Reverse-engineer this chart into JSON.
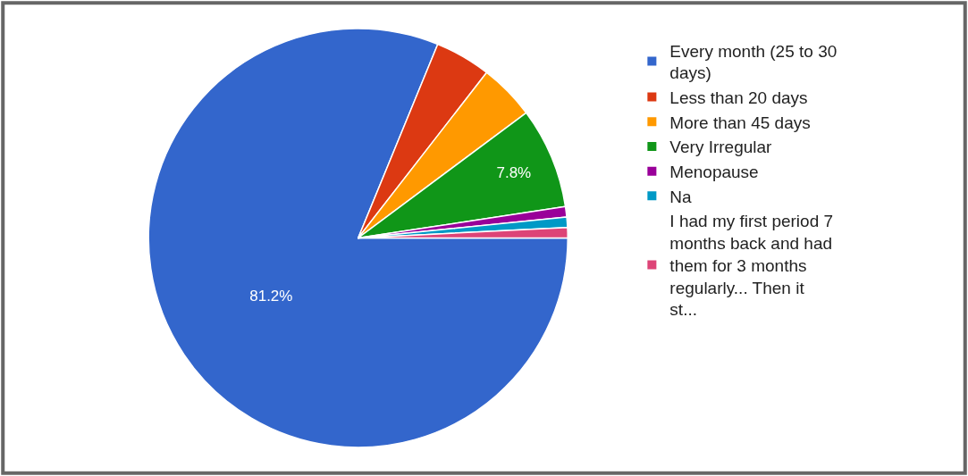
{
  "chart_data": {
    "type": "pie",
    "categories": [
      "Every month (25 to 30 days)",
      "Less than 20 days",
      "More than 45 days",
      "Very Irregular",
      "Menopause",
      "Na",
      "I had my first period 7 months back and had them for 3 months regularly... Then it st..."
    ],
    "values": [
      81.2,
      4.3,
      4.3,
      7.8,
      0.8,
      0.8,
      0.8
    ],
    "value_labels": [
      "81.2%",
      null,
      null,
      "7.8%",
      null,
      null,
      null
    ],
    "colors": [
      "#3366cc",
      "#dc3912",
      "#ff9900",
      "#109618",
      "#990099",
      "#0099c6",
      "#dd4477"
    ],
    "legend": "right"
  }
}
